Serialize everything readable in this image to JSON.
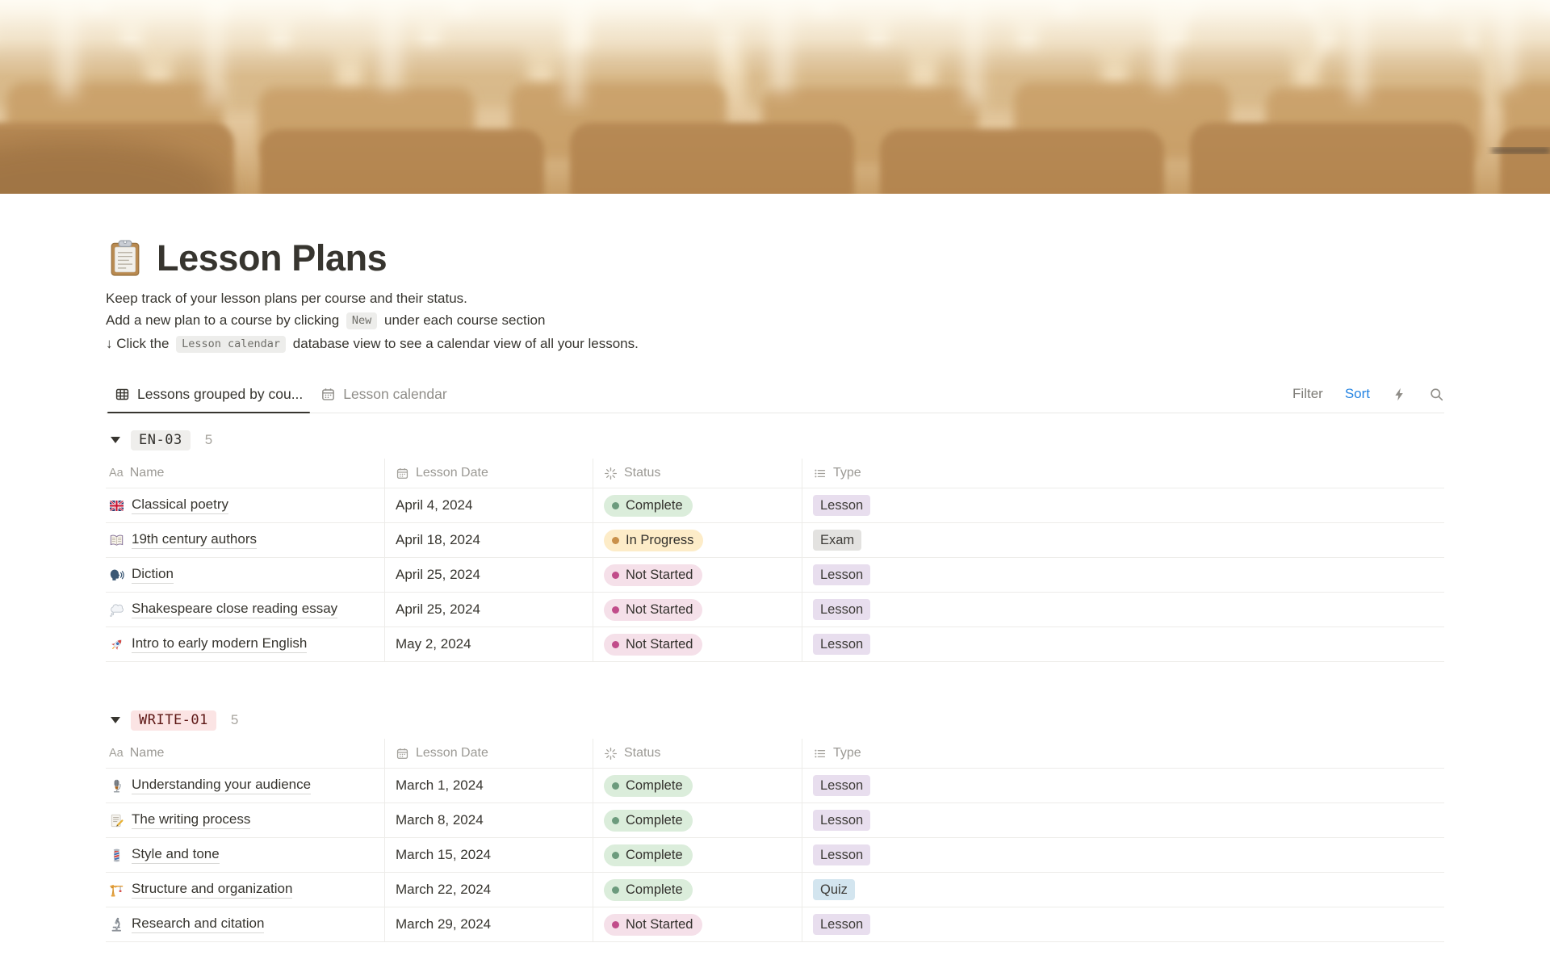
{
  "page": {
    "icon": "clipboard-icon",
    "title": "Lesson Plans",
    "description": [
      {
        "segments": [
          {
            "text": "Keep track of your lesson plans per course and their status."
          }
        ]
      },
      {
        "segments": [
          {
            "text": "Add a new plan to a course by clicking "
          },
          {
            "chip": "New"
          },
          {
            "text": " under each course section"
          }
        ]
      },
      {
        "segments": [
          {
            "text": "↓ Click the "
          },
          {
            "chip": "Lesson calendar"
          },
          {
            "text": " database view to see a calendar view of all your lessons."
          }
        ]
      }
    ]
  },
  "toolbar": {
    "tabs": [
      {
        "label": "Lessons grouped by cou...",
        "icon": "table-view-icon",
        "active": true
      },
      {
        "label": "Lesson calendar",
        "icon": "calendar-view-icon",
        "active": false
      }
    ],
    "controls": {
      "filter_label": "Filter",
      "sort_label": "Sort",
      "sort_color": "#2383E2",
      "icons": [
        "lightning-icon",
        "search-icon"
      ]
    }
  },
  "table": {
    "columns": [
      {
        "label": "Name",
        "icon": "text-icon"
      },
      {
        "label": "Lesson Date",
        "icon": "calendar-icon"
      },
      {
        "label": "Status",
        "icon": "status-spinner-icon"
      },
      {
        "label": "Type",
        "icon": "list-icon"
      }
    ]
  },
  "groups": [
    {
      "name": "EN-03",
      "count": "5",
      "chip_bg": "#EFEEEC",
      "chip_color": "#32302C",
      "rows": [
        {
          "icon": "uk-flag-icon",
          "name": "Classical poetry",
          "date": "April 4, 2024",
          "status": "Complete",
          "type": "Lesson"
        },
        {
          "icon": "open-book-icon",
          "name": "19th century authors",
          "date": "April 18, 2024",
          "status": "In Progress",
          "type": "Exam"
        },
        {
          "icon": "speaking-head-icon",
          "name": "Diction",
          "date": "April 25, 2024",
          "status": "Not Started",
          "type": "Lesson"
        },
        {
          "icon": "thought-balloon-icon",
          "name": "Shakespeare close reading essay",
          "date": "April 25, 2024",
          "status": "Not Started",
          "type": "Lesson"
        },
        {
          "icon": "rocket-icon",
          "name": "Intro to early modern English",
          "date": "May 2, 2024",
          "status": "Not Started",
          "type": "Lesson"
        }
      ]
    },
    {
      "name": "WRITE-01",
      "count": "5",
      "chip_bg": "#FBE4E4",
      "chip_color": "#5D1715",
      "rows": [
        {
          "icon": "studio-microphone-icon",
          "name": "Understanding your audience",
          "date": "March 1, 2024",
          "status": "Complete",
          "type": "Lesson"
        },
        {
          "icon": "memo-icon",
          "name": "The writing process",
          "date": "March 8, 2024",
          "status": "Complete",
          "type": "Lesson"
        },
        {
          "icon": "barber-pole-icon",
          "name": "Style and tone",
          "date": "March 15, 2024",
          "status": "Complete",
          "type": "Lesson"
        },
        {
          "icon": "construction-crane-icon",
          "name": "Structure and organization",
          "date": "March 22, 2024",
          "status": "Complete",
          "type": "Quiz"
        },
        {
          "icon": "microscope-icon",
          "name": "Research and citation",
          "date": "March 29, 2024",
          "status": "Not Started",
          "type": "Lesson"
        }
      ]
    }
  ],
  "status_styles": {
    "Complete": {
      "bg": "#DBEDDB",
      "dot": "#6C9B7D"
    },
    "In Progress": {
      "bg": "#FDECC8",
      "dot": "#C9904A"
    },
    "Not Started": {
      "bg": "#F5E0E9",
      "dot": "#C14C8A"
    }
  },
  "type_styles": {
    "Lesson": {
      "bg": "#E8DEEE"
    },
    "Exam": {
      "bg": "#E3E2E0"
    },
    "Quiz": {
      "bg": "#D3E5EF"
    }
  }
}
